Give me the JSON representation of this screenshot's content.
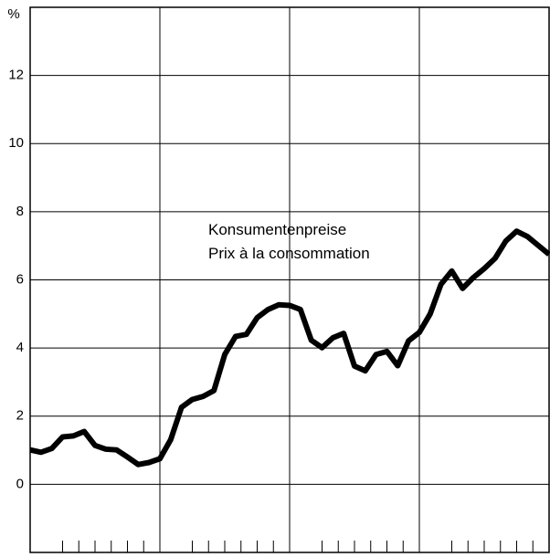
{
  "chart_data": {
    "type": "line",
    "ylabel": "%",
    "annotations": [
      "Konsumentenpreise",
      "Prix à la consommation"
    ],
    "categories": [
      null,
      null,
      null,
      null,
      null,
      null,
      null,
      null,
      null,
      null,
      null,
      null,
      null,
      null,
      null,
      null,
      null,
      null,
      null,
      null,
      null,
      null,
      null,
      null,
      null,
      null,
      null,
      null,
      null,
      null,
      null,
      null,
      null,
      null,
      null,
      null,
      null,
      null,
      null,
      null,
      null,
      null,
      null,
      null,
      null,
      null,
      null,
      null,
      null
    ],
    "series": [
      {
        "name": "Konsumentenpreise",
        "color": "#000000",
        "values": [
          1.01,
          0.94,
          1.05,
          1.39,
          1.42,
          1.55,
          1.14,
          1.03,
          1.01,
          0.8,
          0.58,
          0.64,
          0.75,
          1.31,
          2.26,
          2.49,
          2.58,
          2.75,
          3.81,
          4.34,
          4.4,
          4.89,
          5.13,
          5.27,
          5.25,
          5.13,
          4.23,
          4.01,
          4.3,
          4.43,
          3.47,
          3.33,
          3.81,
          3.9,
          3.48,
          4.21,
          4.46,
          5.0,
          5.87,
          6.26,
          5.75,
          6.07,
          6.33,
          6.63,
          7.14,
          7.43,
          7.27,
          7.01,
          6.75
        ]
      }
    ],
    "ylim": [
      -2,
      14
    ],
    "yticks": [
      0,
      2,
      4,
      6,
      8,
      10,
      12
    ],
    "grid": true
  }
}
